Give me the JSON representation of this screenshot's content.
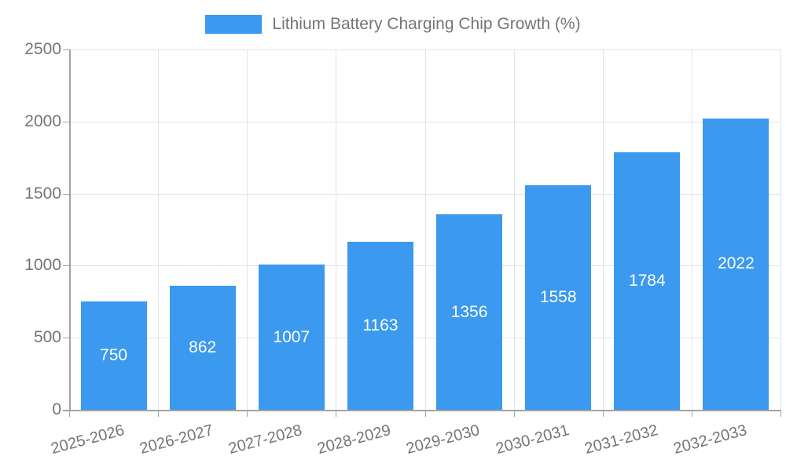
{
  "legend": {
    "label": "Lithium Battery Charging Chip Growth (%)"
  },
  "chart_data": {
    "type": "bar",
    "title": "Lithium Battery Charging Chip Growth (%)",
    "categories": [
      "2025-2026",
      "2026-2027",
      "2027-2028",
      "2028-2029",
      "2029-2030",
      "2030-2031",
      "2031-2032",
      "2032-2033"
    ],
    "values": [
      750,
      862,
      1007,
      1163,
      1356,
      1558,
      1784,
      2022
    ],
    "series": [
      {
        "name": "Lithium Battery Charging Chip Growth (%)",
        "values": [
          750,
          862,
          1007,
          1163,
          1356,
          1558,
          1784,
          2022
        ]
      }
    ],
    "xlabel": "",
    "ylabel": "",
    "ylim": [
      0,
      2500
    ],
    "yticks": [
      0,
      500,
      1000,
      1500,
      2000,
      2500
    ],
    "grid": true,
    "legend_position": "top-center",
    "x_label_rotation_deg": -15,
    "bar_value_labels_inside": true,
    "colors": {
      "bar": "#3B99EF",
      "bar_label_text": "#ffffff",
      "axis_text": "#757575",
      "legend_text": "#757575",
      "grid_line": "#e3e3e3",
      "axis_line": "#a3a3a3",
      "background": "#ffffff"
    }
  }
}
